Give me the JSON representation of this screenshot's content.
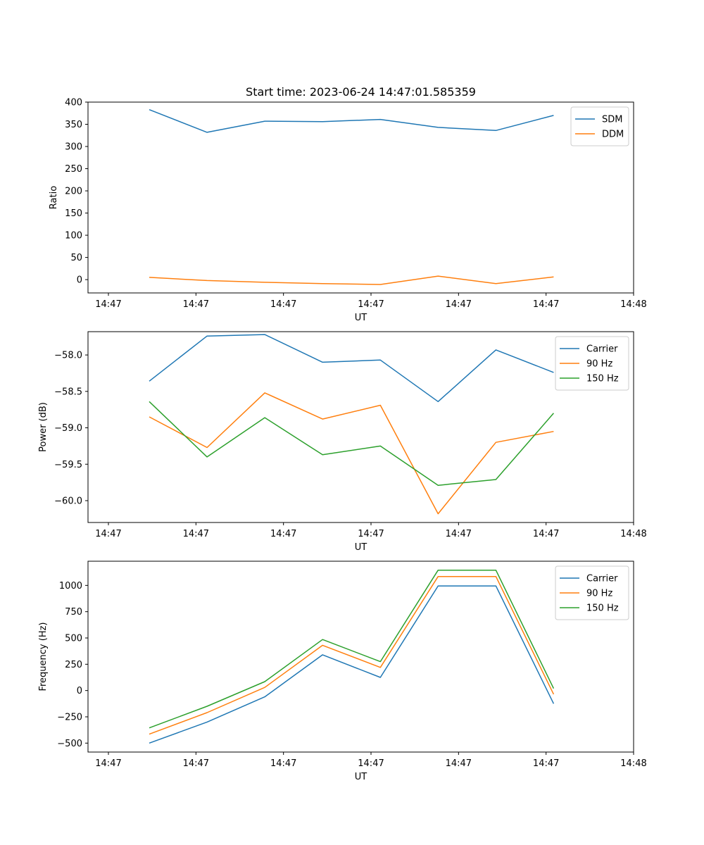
{
  "chart_data": [
    {
      "type": "line",
      "title": "Start time: 2023-06-24 14:47:01.585359",
      "xlabel": "UT",
      "ylabel": "Ratio",
      "xlim": [
        -0.35,
        9.0
      ],
      "ylim": [
        -30,
        400
      ],
      "x_ticks": [
        0,
        1.5,
        3,
        4.5,
        6,
        7.5,
        9
      ],
      "x_tick_labels": [
        "14:47",
        "14:47",
        "14:47",
        "14:47",
        "14:47",
        "14:47",
        "14:48"
      ],
      "y_ticks": [
        0,
        50,
        100,
        150,
        200,
        250,
        300,
        350,
        400
      ],
      "y_tick_labels": [
        "0",
        "50",
        "100",
        "150",
        "200",
        "250",
        "300",
        "350",
        "400"
      ],
      "x": [
        0.7,
        1.69,
        2.68,
        3.67,
        4.66,
        5.65,
        6.64,
        7.63
      ],
      "grid": false,
      "legend_position": "top-right",
      "series": [
        {
          "name": "SDM",
          "color": "#1f77b4",
          "values": [
            383,
            332,
            357,
            356,
            361,
            343,
            336,
            370
          ]
        },
        {
          "name": "DDM",
          "color": "#ff7f0e",
          "values": [
            5,
            -2,
            -6,
            -9,
            -11,
            8,
            -9,
            6
          ]
        }
      ]
    },
    {
      "type": "line",
      "title": "",
      "xlabel": "UT",
      "ylabel": "Power (dB)",
      "xlim": [
        -0.35,
        9.0
      ],
      "ylim": [
        -60.3,
        -57.68
      ],
      "x_ticks": [
        0,
        1.5,
        3,
        4.5,
        6,
        7.5,
        9
      ],
      "x_tick_labels": [
        "14:47",
        "14:47",
        "14:47",
        "14:47",
        "14:47",
        "14:47",
        "14:48"
      ],
      "y_ticks": [
        -60.0,
        -59.5,
        -59.0,
        -58.5,
        -58.0
      ],
      "y_tick_labels": [
        "−60.0",
        "−59.5",
        "−59.0",
        "−58.5",
        "−58.0"
      ],
      "x": [
        0.7,
        1.69,
        2.68,
        3.67,
        4.66,
        5.65,
        6.64,
        7.63
      ],
      "grid": false,
      "legend_position": "top-right",
      "series": [
        {
          "name": "Carrier",
          "color": "#1f77b4",
          "values": [
            -58.36,
            -57.74,
            -57.72,
            -58.1,
            -58.07,
            -58.64,
            -57.93,
            -58.24
          ]
        },
        {
          "name": "90 Hz",
          "color": "#ff7f0e",
          "values": [
            -58.85,
            -59.27,
            -58.52,
            -58.88,
            -58.69,
            -60.18,
            -59.2,
            -59.05
          ]
        },
        {
          "name": "150 Hz",
          "color": "#2ca02c",
          "values": [
            -58.64,
            -59.4,
            -58.86,
            -59.37,
            -59.25,
            -59.79,
            -59.71,
            -58.8
          ]
        }
      ]
    },
    {
      "type": "line",
      "title": "",
      "xlabel": "UT",
      "ylabel": "Frequency (Hz)",
      "xlim": [
        -0.35,
        9.0
      ],
      "ylim": [
        -585,
        1230
      ],
      "x_ticks": [
        0,
        1.5,
        3,
        4.5,
        6,
        7.5,
        9
      ],
      "x_tick_labels": [
        "14:47",
        "14:47",
        "14:47",
        "14:47",
        "14:47",
        "14:47",
        "14:48"
      ],
      "y_ticks": [
        -500,
        -250,
        0,
        250,
        500,
        750,
        1000
      ],
      "y_tick_labels": [
        "−500",
        "−250",
        "0",
        "250",
        "500",
        "750",
        "1000"
      ],
      "x": [
        0.7,
        1.69,
        2.68,
        3.67,
        4.66,
        5.65,
        6.64,
        7.63
      ],
      "grid": false,
      "legend_position": "top-right",
      "series": [
        {
          "name": "Carrier",
          "color": "#1f77b4",
          "values": [
            -500,
            -300,
            -60,
            340,
            125,
            995,
            995,
            -125
          ]
        },
        {
          "name": "90 Hz",
          "color": "#ff7f0e",
          "values": [
            -415,
            -210,
            30,
            430,
            220,
            1085,
            1085,
            -35
          ]
        },
        {
          "name": "150 Hz",
          "color": "#2ca02c",
          "values": [
            -355,
            -150,
            85,
            485,
            275,
            1145,
            1145,
            20
          ]
        }
      ]
    }
  ]
}
